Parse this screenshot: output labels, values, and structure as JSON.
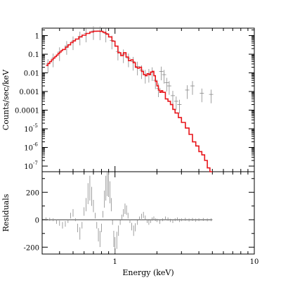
{
  "chart_data": [
    {
      "type": "line",
      "panel": "spectrum",
      "xlabel": "",
      "ylabel": "Counts/sec/keV",
      "xscale": "log",
      "yscale": "log",
      "xlim": [
        0.3,
        10
      ],
      "ylim": [
        5e-08,
        2.5
      ],
      "grid": false,
      "y_ticks": [
        {
          "value": 1,
          "label": "1"
        },
        {
          "value": 0.1,
          "label": "0.1"
        },
        {
          "value": 0.01,
          "label": "0.01"
        },
        {
          "value": 0.001,
          "label": "0.001"
        },
        {
          "value": 0.0001,
          "label": "0.0001"
        },
        {
          "value": 1e-05,
          "label": "10",
          "exponent": "-5"
        },
        {
          "value": 1e-06,
          "label": "10",
          "exponent": "-6"
        },
        {
          "value": 1e-07,
          "label": "10",
          "exponent": "-7"
        }
      ],
      "series": [
        {
          "color": "#e8141a",
          "style": "step",
          "x": [
            0.32,
            0.33,
            0.34,
            0.35,
            0.36,
            0.37,
            0.38,
            0.39,
            0.4,
            0.41,
            0.42,
            0.44,
            0.46,
            0.48,
            0.5,
            0.52,
            0.55,
            0.58,
            0.62,
            0.66,
            0.7,
            0.74,
            0.78,
            0.82,
            0.86,
            0.9,
            0.95,
            1.0,
            1.05,
            1.1,
            1.15,
            1.2,
            1.25,
            1.3,
            1.35,
            1.4,
            1.45,
            1.5,
            1.55,
            1.6,
            1.65,
            1.7,
            1.75,
            1.8,
            1.85,
            1.9,
            1.95,
            2.0,
            2.05,
            2.1,
            2.15,
            2.2,
            2.3,
            2.4,
            2.5,
            2.6,
            2.7,
            2.85,
            3.0,
            3.2,
            3.4,
            3.6,
            3.8,
            4.0,
            4.2,
            4.4,
            4.6,
            4.8,
            5.0
          ],
          "y": [
            0.025,
            0.032,
            0.04,
            0.05,
            0.062,
            0.075,
            0.09,
            0.11,
            0.13,
            0.155,
            0.18,
            0.24,
            0.32,
            0.42,
            0.52,
            0.65,
            0.85,
            1.05,
            1.3,
            1.55,
            1.7,
            1.72,
            1.68,
            1.5,
            1.2,
            0.85,
            0.5,
            0.27,
            0.12,
            0.085,
            0.12,
            0.07,
            0.045,
            0.05,
            0.035,
            0.02,
            0.018,
            0.02,
            0.012,
            0.008,
            0.007,
            0.009,
            0.008,
            0.011,
            0.012,
            0.007,
            0.0035,
            0.002,
            0.0012,
            0.0009,
            0.0011,
            0.0009,
            0.0004,
            0.0003,
            0.0002,
            0.00011,
            7e-05,
            4e-05,
            2.2e-05,
            1.1e-05,
            5e-06,
            2e-06,
            1.2e-06,
            6e-07,
            4e-07,
            2e-07,
            8e-08,
            4e-08,
            3e-08
          ]
        },
        {
          "color": "#888888",
          "style": "errorbar",
          "x": [
            0.33,
            0.36,
            0.4,
            0.45,
            0.5,
            0.56,
            0.62,
            0.7,
            0.78,
            0.86,
            0.95,
            1.05,
            1.15,
            1.25,
            1.35,
            1.45,
            1.55,
            1.65,
            1.75,
            1.85,
            1.95,
            2.05,
            2.15,
            2.25,
            2.35,
            2.45,
            2.6,
            2.75,
            2.9,
            3.3,
            3.6,
            4.2,
            4.9
          ],
          "y": [
            0.03,
            0.06,
            0.13,
            0.28,
            0.5,
            0.9,
            1.3,
            1.75,
            1.7,
            1.3,
            0.55,
            0.14,
            0.1,
            0.06,
            0.04,
            0.022,
            0.014,
            0.008,
            0.009,
            0.011,
            0.004,
            0.0015,
            0.012,
            0.008,
            0.003,
            0.002,
            0.0006,
            0.0003,
            0.0002,
            0.0012,
            0.002,
            0.0008,
            0.0007
          ]
        }
      ]
    },
    {
      "type": "line",
      "panel": "residuals",
      "xlabel": "Energy (keV)",
      "ylabel": "Residuals",
      "xscale": "log",
      "xlim": [
        0.3,
        10
      ],
      "ylim": [
        -250,
        350
      ],
      "grid": false,
      "zero_line": 0,
      "x_ticks": [
        {
          "value": 1,
          "label": "1"
        },
        {
          "value": 10,
          "label": "10"
        }
      ],
      "y_ticks": [
        {
          "value": 200,
          "label": "200"
        },
        {
          "value": 0,
          "label": "0"
        },
        {
          "value": -200,
          "label": "-200"
        }
      ],
      "series": [
        {
          "color": "#888888",
          "style": "errorbar",
          "x": [
            0.32,
            0.34,
            0.36,
            0.38,
            0.4,
            0.42,
            0.44,
            0.46,
            0.48,
            0.5,
            0.52,
            0.54,
            0.56,
            0.58,
            0.6,
            0.62,
            0.64,
            0.66,
            0.68,
            0.7,
            0.72,
            0.74,
            0.76,
            0.78,
            0.8,
            0.82,
            0.84,
            0.86,
            0.88,
            0.9,
            0.92,
            0.94,
            0.96,
            0.98,
            1.0,
            1.03,
            1.06,
            1.09,
            1.12,
            1.15,
            1.18,
            1.21,
            1.24,
            1.28,
            1.32,
            1.36,
            1.4,
            1.45,
            1.5,
            1.55,
            1.6,
            1.65,
            1.7,
            1.75,
            1.8,
            1.85,
            1.9,
            1.95,
            2.0,
            2.1,
            2.2,
            2.3,
            2.4,
            2.5,
            2.6,
            2.7,
            2.8,
            2.9,
            3.0,
            3.2,
            3.4,
            3.6,
            3.8,
            4.0,
            4.3,
            4.6,
            4.9
          ],
          "y": [
            5,
            3,
            0,
            -15,
            -25,
            -40,
            -30,
            -10,
            30,
            50,
            0,
            -60,
            -100,
            -40,
            60,
            110,
            190,
            230,
            170,
            100,
            30,
            -40,
            -110,
            -140,
            -60,
            40,
            150,
            230,
            280,
            270,
            200,
            110,
            -20,
            -140,
            -210,
            -150,
            -80,
            -20,
            20,
            50,
            80,
            70,
            30,
            -10,
            -50,
            -80,
            -55,
            -20,
            10,
            25,
            35,
            15,
            -10,
            -20,
            -10,
            5,
            10,
            0,
            -5,
            -15,
            0,
            10,
            5,
            -5,
            -10,
            0,
            5,
            -5,
            0,
            3,
            -2,
            2,
            -3,
            0,
            2,
            -1,
            0
          ]
        }
      ]
    }
  ]
}
